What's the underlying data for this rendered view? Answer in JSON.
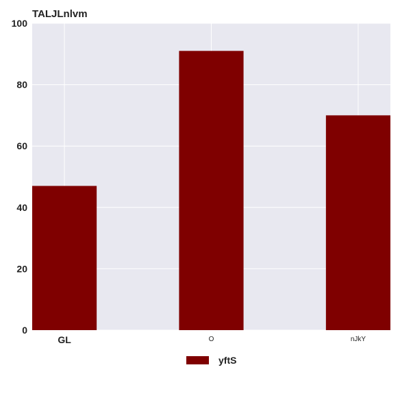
{
  "chart_data": {
    "type": "bar",
    "title": "TALJLnlvm",
    "xlabel": "",
    "ylabel": "",
    "categories": [
      "GL",
      "O",
      "nJkY"
    ],
    "series": [
      {
        "name": "yftS",
        "values": [
          47,
          91,
          70
        ],
        "color": "#7f0000"
      }
    ],
    "ylim": [
      0,
      100
    ],
    "yticks": [
      0,
      20,
      40,
      60,
      80,
      100
    ],
    "grid": true,
    "legend_position": "bottom-center",
    "colors": {
      "plot_background": "#e8e8f0",
      "grid": "#ffffff",
      "bar": "#7f0000"
    }
  }
}
